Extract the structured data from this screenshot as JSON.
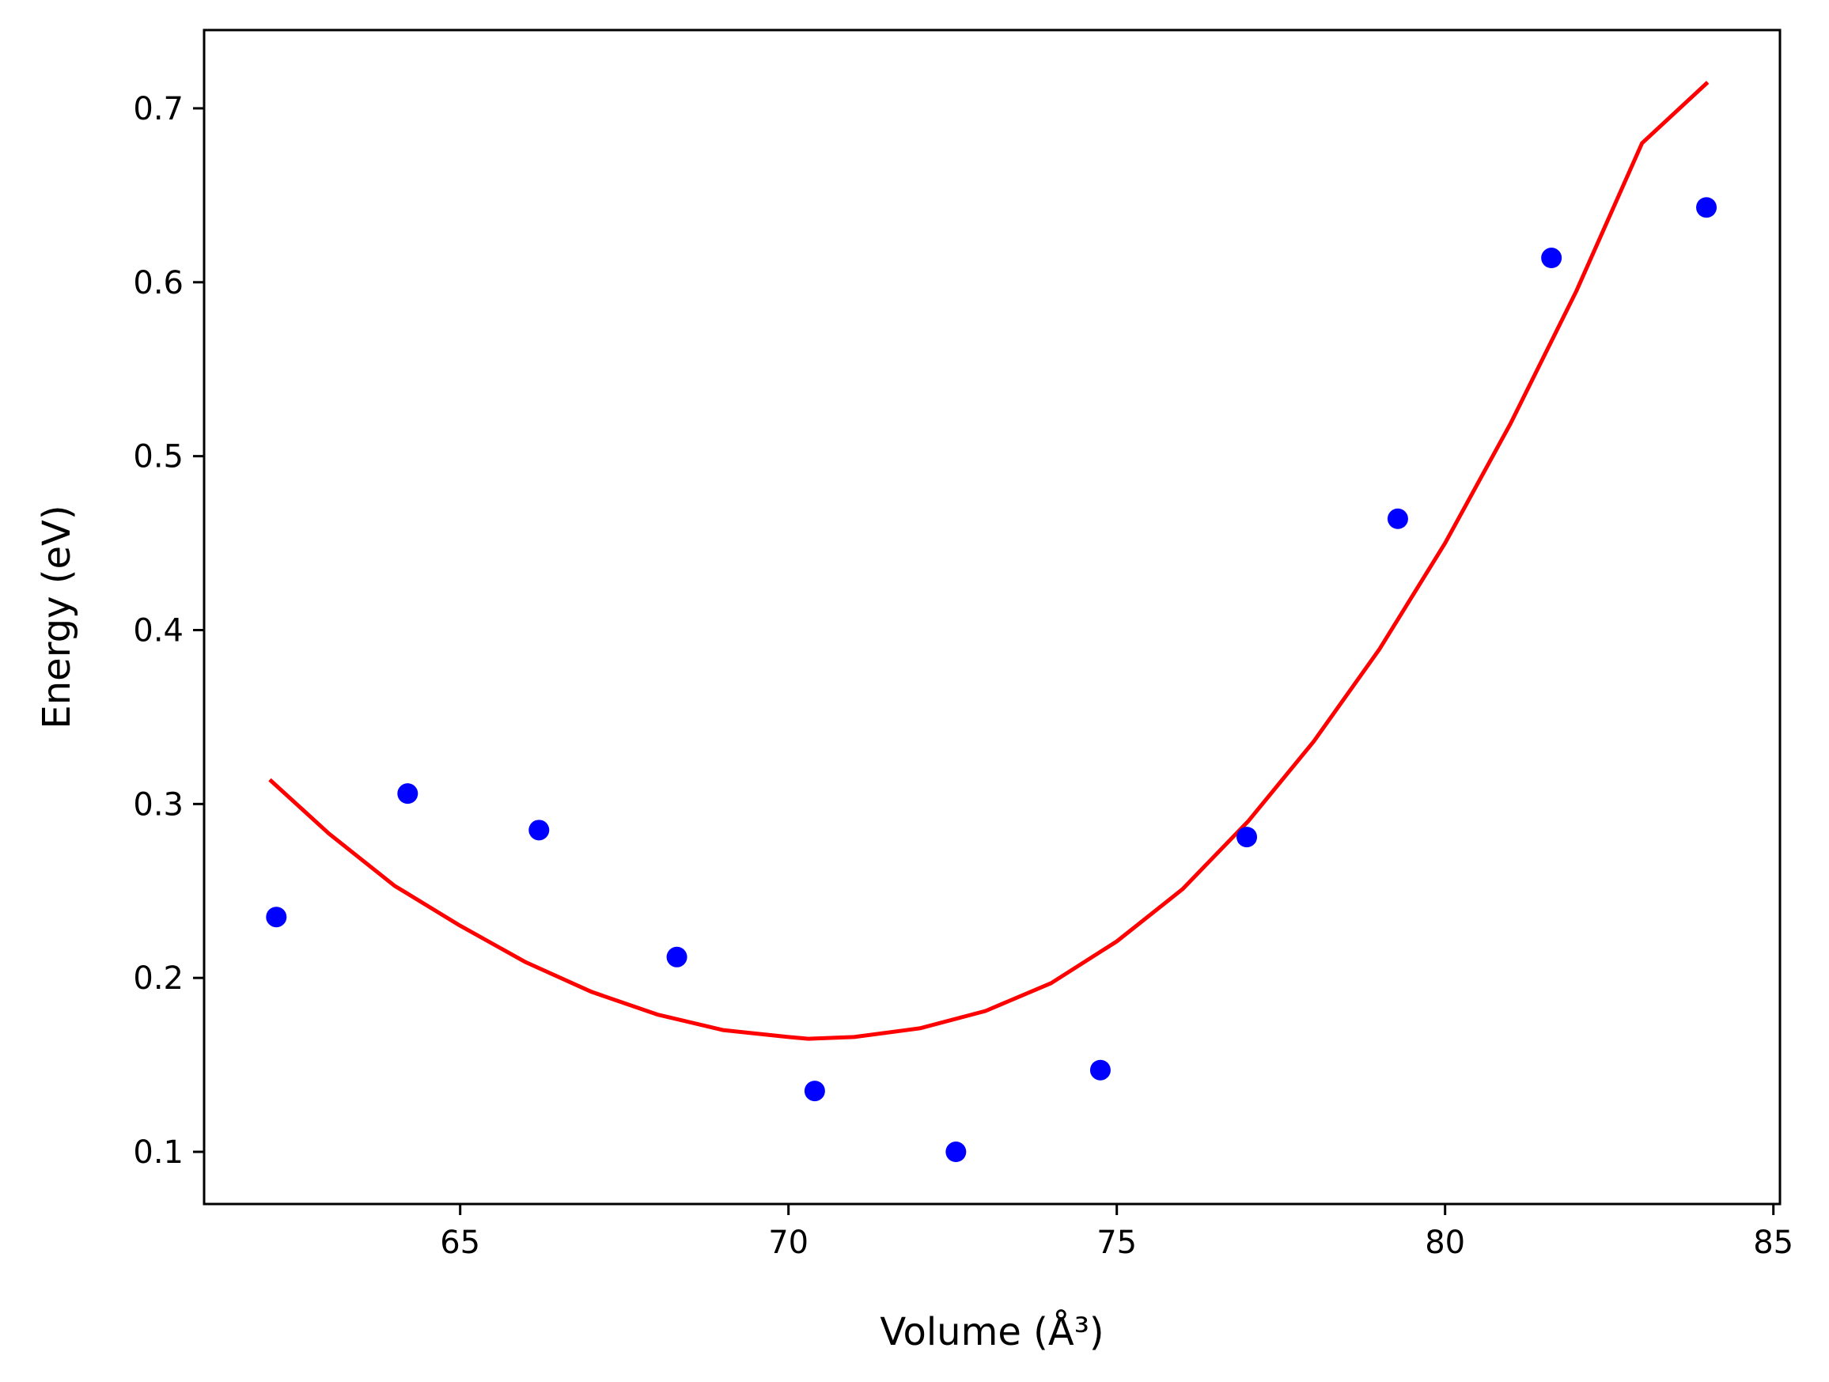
{
  "chart_data": {
    "type": "scatter",
    "title": "",
    "xlabel": "Volume (Å³)",
    "ylabel": "Energy (eV)",
    "xlim": [
      61.1,
      85.1
    ],
    "ylim": [
      0.07,
      0.745
    ],
    "xticks": [
      65,
      70,
      75,
      80,
      85
    ],
    "yticks": [
      0.1,
      0.2,
      0.3,
      0.4,
      0.5,
      0.6,
      0.7
    ],
    "xtick_labels": [
      "65",
      "70",
      "75",
      "80",
      "85"
    ],
    "ytick_labels": [
      "0.1",
      "0.2",
      "0.3",
      "0.4",
      "0.5",
      "0.6",
      "0.7"
    ],
    "grid": false,
    "legend": false,
    "series": [
      {
        "kind": "scatter",
        "color": "#0000ff",
        "x": [
          62.2,
          64.2,
          66.2,
          68.3,
          70.4,
          72.55,
          74.75,
          76.98,
          79.28,
          81.62,
          83.98
        ],
        "y": [
          0.235,
          0.306,
          0.285,
          0.212,
          0.135,
          0.1,
          0.147,
          0.281,
          0.464,
          0.614,
          0.643
        ]
      },
      {
        "kind": "line",
        "color": "#ff0000",
        "x": [
          62.1,
          63.0,
          64.0,
          65.0,
          66.0,
          67.0,
          68.0,
          69.0,
          70.0,
          70.3,
          71.0,
          72.0,
          73.0,
          74.0,
          75.0,
          76.0,
          77.0,
          78.0,
          79.0,
          80.0,
          81.0,
          82.0,
          83.0,
          84.0
        ],
        "y": [
          0.314,
          0.283,
          0.253,
          0.23,
          0.209,
          0.192,
          0.179,
          0.17,
          0.166,
          0.165,
          0.166,
          0.171,
          0.181,
          0.197,
          0.221,
          0.251,
          0.29,
          0.336,
          0.389,
          0.45,
          0.519,
          0.595,
          0.68,
          0.715
        ]
      }
    ]
  }
}
